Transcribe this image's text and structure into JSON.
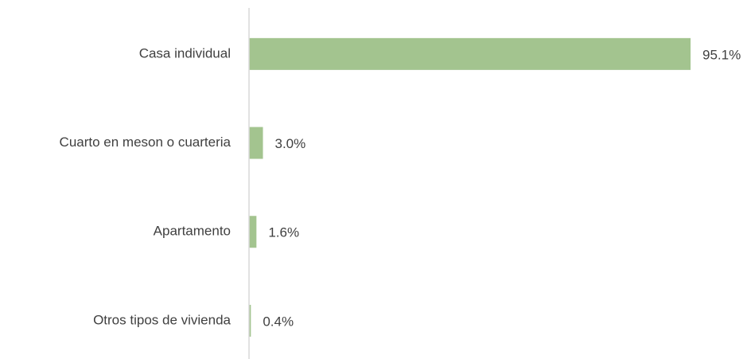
{
  "chart_data": {
    "type": "hbar",
    "categories": [
      "Casa individual",
      "Cuarto en meson o cuarteria",
      "Apartamento",
      "Otros tipos de vivienda"
    ],
    "values": [
      95.1,
      3.0,
      1.6,
      0.4
    ],
    "value_labels": [
      "95.1%",
      "3.0%",
      "1.6%",
      "0.4%"
    ],
    "color": "#a3c48f"
  }
}
